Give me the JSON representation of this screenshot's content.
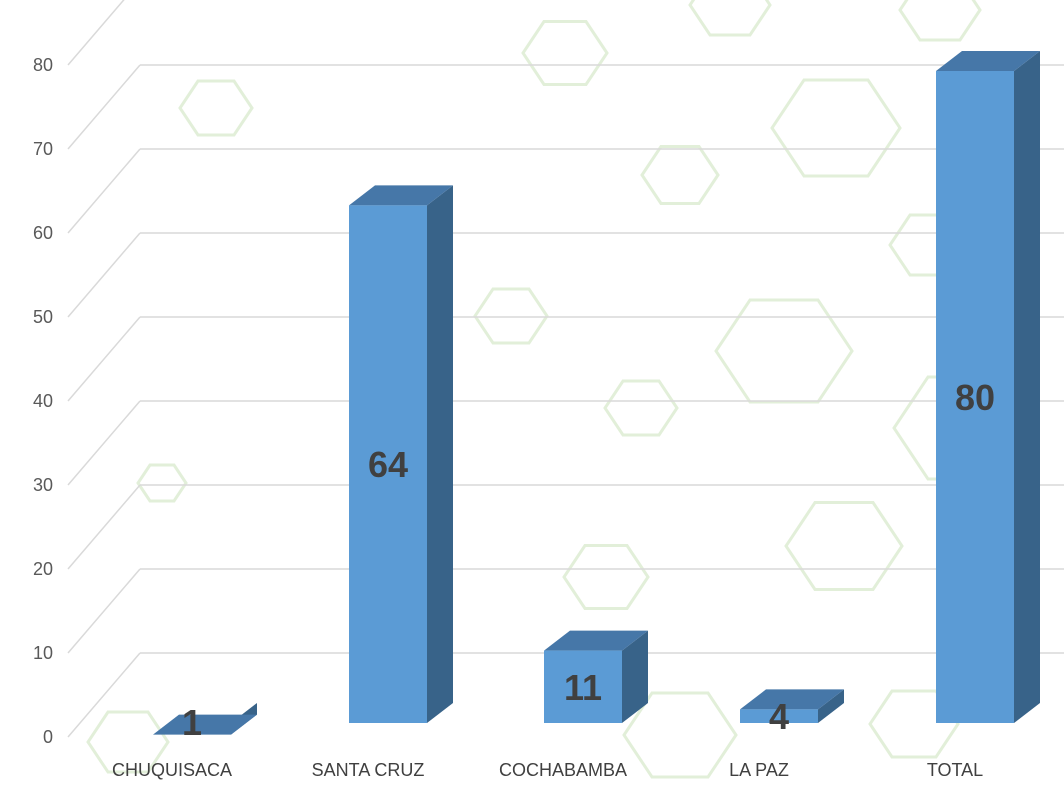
{
  "chart_data": {
    "type": "bar",
    "style": "3d-column",
    "categories": [
      "CHUQUISACA",
      "SANTA CRUZ",
      "COCHABAMBA",
      "LA PAZ",
      "TOTAL"
    ],
    "values": [
      1,
      64,
      11,
      4,
      80
    ],
    "data_labels": [
      "1",
      "64",
      "11",
      "4",
      "80"
    ],
    "title": "",
    "xlabel": "",
    "ylabel": "",
    "ylim": [
      0,
      80
    ],
    "yticks": [
      0,
      10,
      20,
      30,
      40,
      50,
      60,
      70,
      80
    ],
    "grid": true,
    "legend": "none",
    "colors": {
      "bar_front": "#5B9BD5",
      "bar_top": "#4677A8",
      "bar_side": "#386389",
      "grid": "#D9D9D9",
      "hexagon": "#E2EFD9"
    }
  }
}
